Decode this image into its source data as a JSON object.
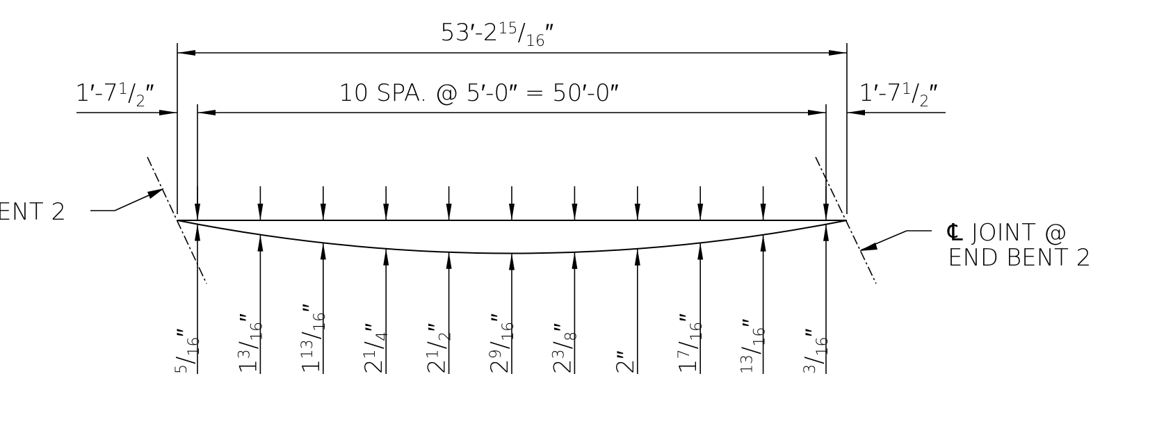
{
  "overall_dimension": {
    "whole": "53′-2",
    "num": "15",
    "den": "16",
    "unit": "″"
  },
  "left_offset": {
    "whole": "1′-7",
    "num": "1",
    "den": "2",
    "unit": "″"
  },
  "right_offset": {
    "whole": "1′-7",
    "num": "1",
    "den": "2",
    "unit": "″"
  },
  "spacing_label": "10 SPA. @ 5′-0″ = 50′-0″",
  "left_callout": "ENT 2",
  "right_callout": {
    "line1_symbol": "℄",
    "line1_text": "JOINT @",
    "line2": "END BENT 2"
  },
  "ordinates": [
    {
      "whole": "",
      "num": "5",
      "den": "16",
      "unit": "″"
    },
    {
      "whole": "1",
      "num": "3",
      "den": "16",
      "unit": "″"
    },
    {
      "whole": "1",
      "num": "13",
      "den": "16",
      "unit": "″"
    },
    {
      "whole": "2",
      "num": "1",
      "den": "4",
      "unit": "″"
    },
    {
      "whole": "2",
      "num": "1",
      "den": "2",
      "unit": "″"
    },
    {
      "whole": "2",
      "num": "9",
      "den": "16",
      "unit": "″"
    },
    {
      "whole": "2",
      "num": "3",
      "den": "8",
      "unit": "″"
    },
    {
      "whole": "2″",
      "num": "",
      "den": "",
      "unit": ""
    },
    {
      "whole": "1",
      "num": "7",
      "den": "16",
      "unit": "″"
    },
    {
      "whole": "",
      "num": "13",
      "den": "16",
      "unit": "″"
    },
    {
      "whole": "",
      "num": "3",
      "den": "16",
      "unit": "″"
    }
  ]
}
